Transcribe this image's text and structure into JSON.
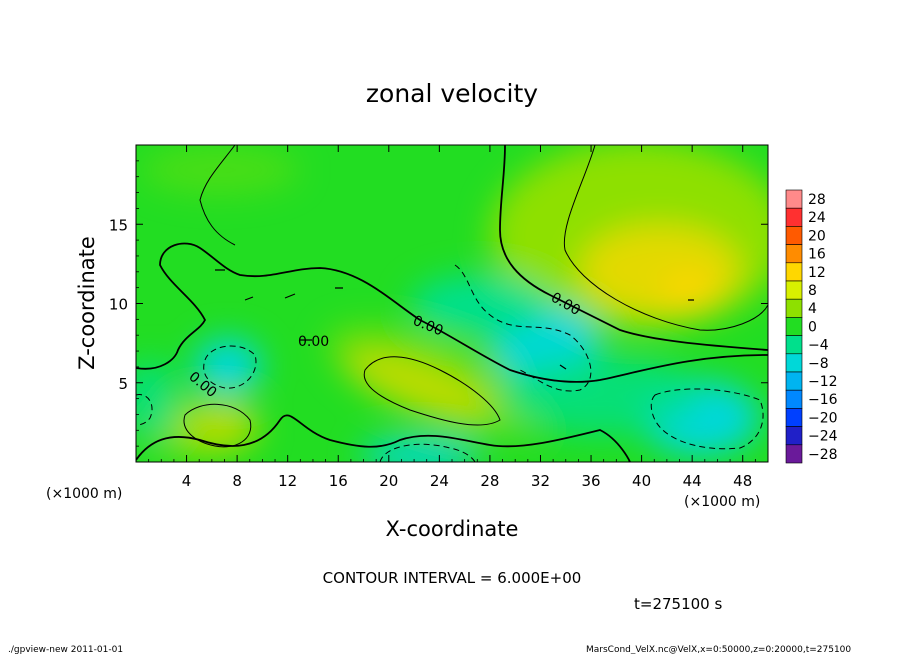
{
  "chart_data": {
    "type": "heatmap",
    "title": "zonal velocity",
    "xlabel": "X-coordinate",
    "ylabel": "Z-coordinate",
    "x_unit_label": "(×1000 m)",
    "y_unit_label": "(×1000 m)",
    "xlim": [
      0,
      50
    ],
    "ylim": [
      0,
      20
    ],
    "x_ticks": [
      4,
      8,
      12,
      16,
      20,
      24,
      28,
      32,
      36,
      40,
      44,
      48
    ],
    "y_ticks": [
      5,
      10,
      15
    ],
    "contour_interval_label": "CONTOUR INTERVAL = 6.000E+00",
    "contour_labels": [
      "0.00",
      "0.00",
      "0.00",
      "0.00"
    ],
    "time_label": "t=275100 s",
    "colorbar": {
      "levels": [
        28,
        24,
        20,
        16,
        12,
        8,
        4,
        0,
        -4,
        -8,
        -12,
        -16,
        -20,
        -24,
        -28
      ],
      "labels": [
        "28",
        "24",
        "20",
        "16",
        "12",
        "8",
        "4",
        "0",
        "−4",
        "−8",
        "−12",
        "−16",
        "−20",
        "−24",
        "−28"
      ],
      "colors": [
        "#ff8a8a",
        "#ff3030",
        "#ff5a00",
        "#ff8c00",
        "#ffd700",
        "#d8f000",
        "#8ee000",
        "#22dd22",
        "#00e08c",
        "#00d8d8",
        "#00b4f0",
        "#0088ff",
        "#0040ff",
        "#2020c8",
        "#6a1a9a"
      ]
    },
    "field_features": [
      {
        "x": 43,
        "z": 11.5,
        "value": 10
      },
      {
        "x": 6.5,
        "z": 2.8,
        "value": 8
      },
      {
        "x": 21.5,
        "z": 4.8,
        "value": 8
      },
      {
        "x": 8,
        "z": 6.2,
        "value": -6
      },
      {
        "x": 32,
        "z": 7.5,
        "value": -6
      },
      {
        "x": 44,
        "z": 2.8,
        "value": -6
      },
      {
        "x": 22,
        "z": 1.0,
        "value": -6
      },
      {
        "x": 35,
        "z": 14.0,
        "value": 0
      }
    ]
  },
  "footer": {
    "left": "./gpview-new   2011-01-01",
    "right": "MarsCond_VelX.nc@VelX,x=0:50000,z=0:20000,t=275100"
  }
}
